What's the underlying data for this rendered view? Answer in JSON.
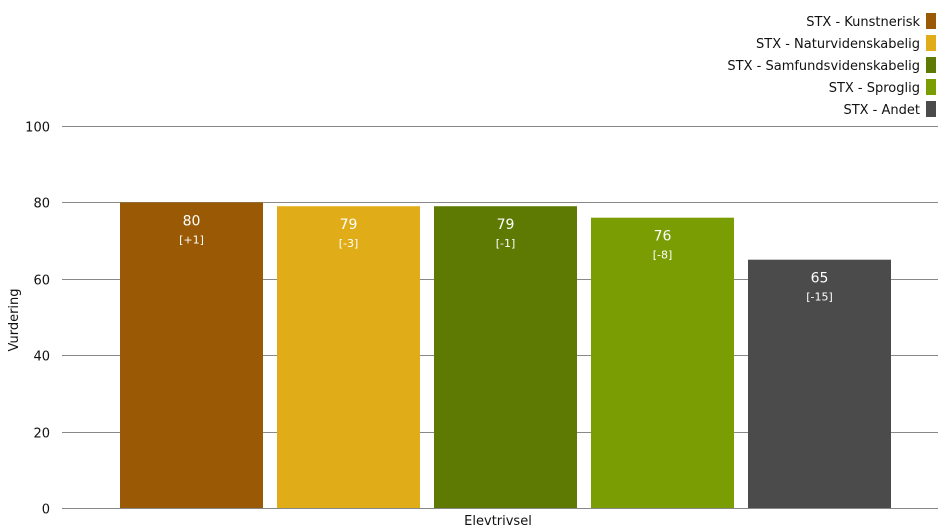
{
  "chart_data": {
    "type": "bar",
    "categories": [
      "Elevtrivsel"
    ],
    "xlabel": "Elevtrivsel",
    "ylabel": "Vurdering",
    "ylim": [
      0,
      100
    ],
    "yticks": [
      0,
      20,
      40,
      60,
      80,
      100
    ],
    "grid": true,
    "legend_position": "top-right",
    "series": [
      {
        "name": "STX - Kunstnerisk",
        "value": 80,
        "delta": "[+1]",
        "color": "#9a5a05"
      },
      {
        "name": "STX - Naturvidenskabelig",
        "value": 79,
        "delta": "[-3]",
        "color": "#e0ad18"
      },
      {
        "name": "STX - Samfundsvidenskabelig",
        "value": 79,
        "delta": "[-1]",
        "color": "#5e7a03"
      },
      {
        "name": "STX - Sproglig",
        "value": 76,
        "delta": "[-8]",
        "color": "#7a9d04"
      },
      {
        "name": "STX - Andet",
        "value": 65,
        "delta": "[-15]",
        "color": "#4b4b4b"
      }
    ]
  }
}
